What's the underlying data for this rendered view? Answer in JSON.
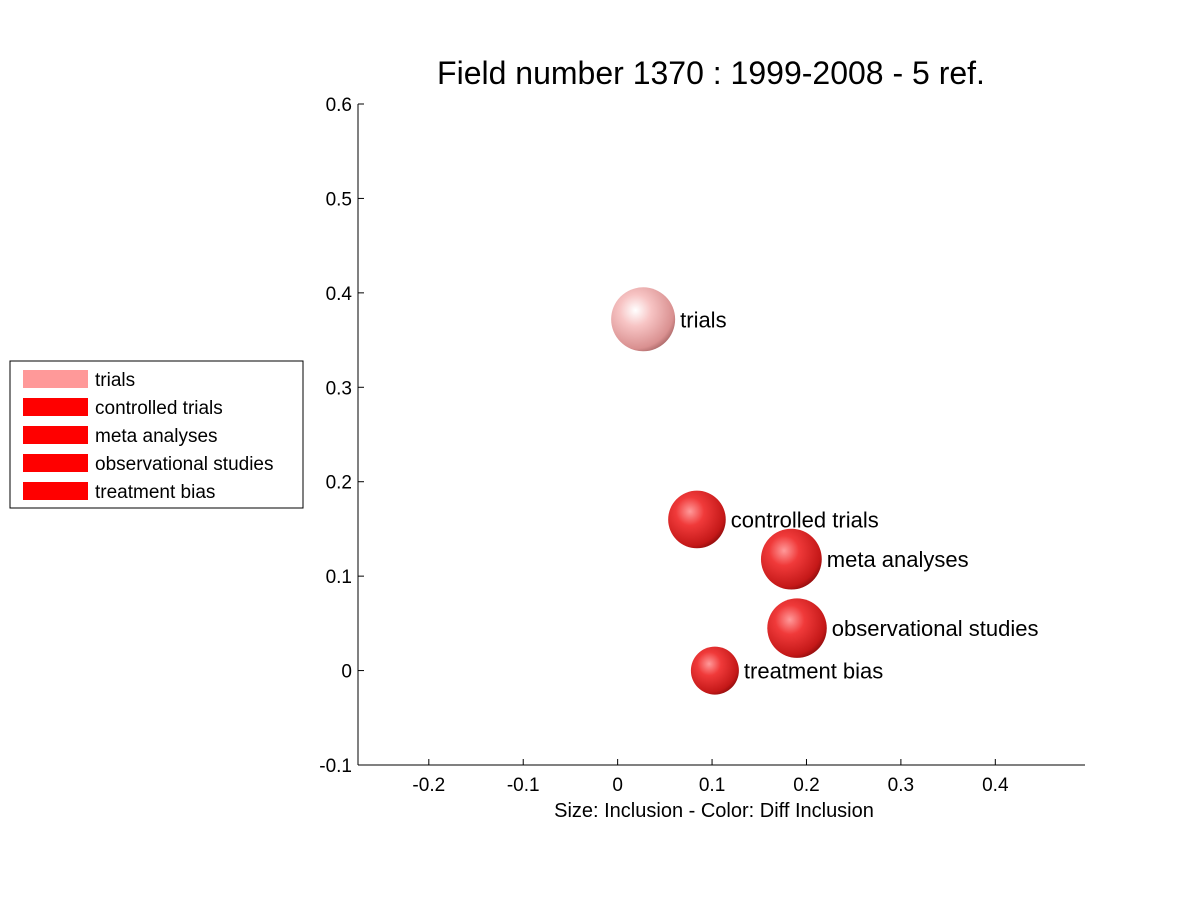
{
  "chart_data": {
    "type": "scatter",
    "title": "Field number 1370 : 1999-2008  - 5 ref.",
    "xlabel": "Size: Inclusion - Color: Diff Inclusion",
    "ylabel": "",
    "xlim": [
      -0.275,
      0.495
    ],
    "ylim": [
      -0.1,
      0.6
    ],
    "xticks": [
      -0.2,
      -0.1,
      0,
      0.1,
      0.2,
      0.3,
      0.4
    ],
    "xtick_labels": [
      "-0.2",
      "-0.1",
      "0",
      "0.1",
      "0.2",
      "0.3",
      "0.4"
    ],
    "yticks": [
      -0.1,
      0,
      0.1,
      0.2,
      0.3,
      0.4,
      0.5,
      0.6
    ],
    "ytick_labels": [
      "-0.1",
      "0",
      "0.1",
      "0.2",
      "0.3",
      "0.4",
      "0.5",
      "0.6"
    ],
    "grid": false,
    "legend_position": "left",
    "points": [
      {
        "label": "trials",
        "x": 0.027,
        "y": 0.372,
        "size": 1.0,
        "color": "#f4a6a6"
      },
      {
        "label": "controlled trials",
        "x": 0.084,
        "y": 0.16,
        "size": 0.9,
        "color": "#ee2222"
      },
      {
        "label": "meta analyses",
        "x": 0.184,
        "y": 0.118,
        "size": 0.95,
        "color": "#ee2222"
      },
      {
        "label": "observational studies",
        "x": 0.19,
        "y": 0.045,
        "size": 0.93,
        "color": "#ee2222"
      },
      {
        "label": "treatment bias",
        "x": 0.103,
        "y": 0.0,
        "size": 0.75,
        "color": "#ee2222"
      }
    ],
    "legend": [
      {
        "label": "trials",
        "color": "#ff9999"
      },
      {
        "label": "controlled trials",
        "color": "#ff0000"
      },
      {
        "label": "meta analyses",
        "color": "#ff0000"
      },
      {
        "label": "observational studies",
        "color": "#ff0000"
      },
      {
        "label": "treatment bias",
        "color": "#ff0000"
      }
    ]
  }
}
